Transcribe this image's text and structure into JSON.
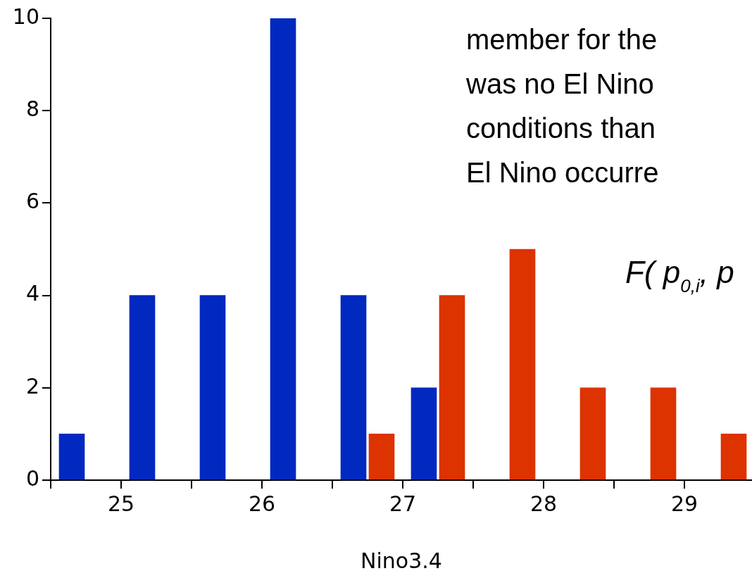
{
  "chart_data": {
    "type": "bar",
    "xlabel": "Nino3.4",
    "series": [
      {
        "color": "#0229bf",
        "x": [
          24.65,
          25.15,
          25.65,
          26.15,
          26.65,
          27.15
        ],
        "values": [
          1,
          4,
          4,
          10,
          4,
          2
        ]
      },
      {
        "color": "#dc3300",
        "x": [
          26.85,
          27.35,
          27.85,
          28.35,
          28.85,
          29.35
        ],
        "values": [
          1,
          4,
          5,
          2,
          2,
          1
        ]
      }
    ],
    "xlim": [
      24.5,
      29.48
    ],
    "xticks": [
      {
        "value": 24.5,
        "label": null
      },
      25,
      {
        "value": 25.5,
        "label": null
      },
      26,
      {
        "value": 26.5,
        "label": null
      },
      27,
      {
        "value": 27.5,
        "label": null
      },
      28,
      {
        "value": 28.5,
        "label": null
      },
      29
    ],
    "ylim": [
      0,
      10
    ],
    "yticks": [
      0,
      2,
      4,
      6,
      8,
      10
    ],
    "grid": false,
    "legend": false,
    "annotations": [
      "member for the",
      "was no El Nino",
      "conditions than",
      "El Nino occurre",
      "F( p$_{0,i}$, p"
    ]
  }
}
